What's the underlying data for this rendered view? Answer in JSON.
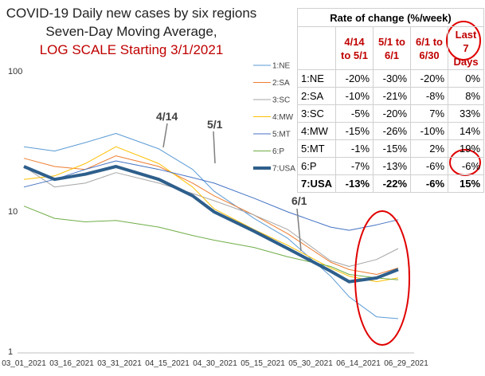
{
  "title_lines": [
    "COVID-19 Daily new cases by six regions",
    "Seven-Day Moving Average,",
    "LOG SCALE Starting 3/1/2021"
  ],
  "annotations": [
    "4/14",
    "5/1",
    "6/1"
  ],
  "colors": {
    "accent_red": "#c00000",
    "usa": "#2e5f8c"
  },
  "table": {
    "title": "Rate of change (%/week)",
    "headers": [
      "4/14 to 5/1",
      "5/1 to 6/1",
      "6/1 to 6/30",
      "Last 7 Days"
    ],
    "rows": [
      {
        "label": "1:NE",
        "values": [
          "-20%",
          "-30%",
          "-20%",
          "0%"
        ]
      },
      {
        "label": "2:SA",
        "values": [
          "-10%",
          "-21%",
          "-8%",
          "8%"
        ]
      },
      {
        "label": "3:SC",
        "values": [
          "-5%",
          "-20%",
          "7%",
          "33%"
        ]
      },
      {
        "label": "4:MW",
        "values": [
          "-15%",
          "-26%",
          "-10%",
          "14%"
        ]
      },
      {
        "label": "5:MT",
        "values": [
          "-1%",
          "-15%",
          "2%",
          "19%"
        ]
      },
      {
        "label": "6:P",
        "values": [
          "-7%",
          "-13%",
          "-6%",
          "-6%"
        ]
      },
      {
        "label": "7:USA",
        "values": [
          "-13%",
          "-22%",
          "-6%",
          "15%"
        ]
      }
    ]
  },
  "chart_data": {
    "type": "line",
    "title": "COVID-19 Daily new cases by six regions Seven-Day Moving Average, LOG SCALE Starting 3/1/2021",
    "xlabel": "",
    "ylabel": "",
    "y_scale": "log",
    "ylim": [
      1,
      100
    ],
    "y_ticks": [
      "1",
      "10",
      "100"
    ],
    "x_tick_labels": [
      "03_01_2021",
      "03_16_2021",
      "03_31_2021",
      "04_15_2021",
      "04_30_2021",
      "05_15_2021",
      "05_30_2021",
      "06_14_2021",
      "06_29_2021"
    ],
    "x_days": [
      0,
      10,
      20,
      30,
      44,
      55,
      62,
      75,
      86,
      100,
      106,
      115,
      122
    ],
    "legend_position": "right",
    "grid": false,
    "series": [
      {
        "name": "1:NE",
        "color": "#5b9bd5",
        "width": 1,
        "values": [
          29,
          27,
          31,
          36,
          28,
          20,
          14,
          9,
          6.5,
          3.5,
          2.5,
          1.8,
          1.75
        ]
      },
      {
        "name": "2:SA",
        "color": "#ed7d31",
        "width": 1,
        "values": [
          24,
          21,
          20,
          25,
          21,
          16,
          13,
          9.5,
          7,
          4.4,
          3.9,
          3.6,
          4.0
        ]
      },
      {
        "name": "3:SC",
        "color": "#a5a5a5",
        "width": 1,
        "values": [
          21,
          15,
          16,
          19,
          16,
          13.5,
          12,
          9.5,
          7.5,
          4.5,
          4.1,
          4.6,
          5.5
        ]
      },
      {
        "name": "4:MW",
        "color": "#ffc000",
        "width": 1,
        "values": [
          17,
          18,
          22,
          29,
          22,
          15,
          10.5,
          7.5,
          5.8,
          4.0,
          3.5,
          3.2,
          3.4
        ]
      },
      {
        "name": "5:MT",
        "color": "#4472c4",
        "width": 1,
        "values": [
          15,
          17,
          20,
          23,
          20,
          17.5,
          16,
          12.5,
          10,
          7.8,
          7.4,
          8.1,
          8.8
        ]
      },
      {
        "name": "6:P",
        "color": "#70ad47",
        "width": 1,
        "values": [
          11,
          9,
          8.5,
          8.7,
          7.8,
          6.8,
          6.3,
          5.6,
          4.8,
          4.1,
          3.6,
          3.4,
          3.3
        ]
      },
      {
        "name": "7:USA",
        "color": "#2e5f8c",
        "width": 4,
        "values": [
          21,
          17,
          18.5,
          21,
          17,
          13,
          10,
          7.3,
          5.5,
          3.8,
          3.2,
          3.4,
          3.9
        ]
      }
    ]
  }
}
